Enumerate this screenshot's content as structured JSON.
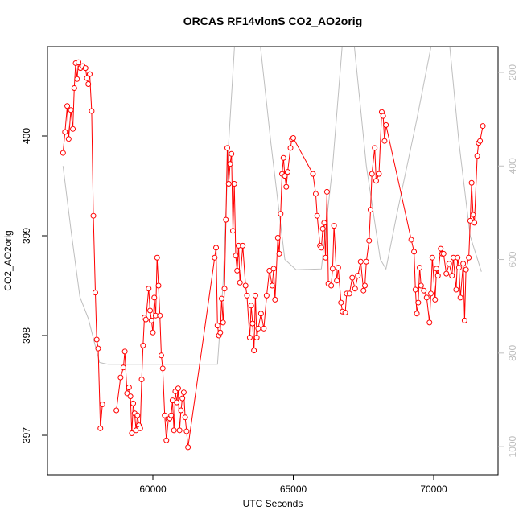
{
  "chart_data": {
    "type": "line",
    "title": "ORCAS RF14vlonS CO2_AO2orig",
    "x_label": "UTC Seconds",
    "y_label": "CO2_AO2orig",
    "xlim": [
      56246,
      72292
    ],
    "xticks": [
      60000,
      65000,
      70000
    ],
    "ylim": [
      396.605,
      400.895
    ],
    "yticks": [
      397,
      398,
      399,
      400
    ],
    "y2lim": [
      1060,
      145
    ],
    "y2ticks": [
      200,
      400,
      600,
      800,
      1000
    ],
    "series": [
      {
        "color": "#ff0000",
        "markers": true,
        "x": [
          56800,
          56870,
          56950,
          57000,
          57080,
          57150,
          57200,
          57250,
          57300,
          57350,
          57420,
          57500,
          57600,
          57650,
          57700,
          57750,
          57820,
          57880,
          57950,
          58000,
          58050,
          58130,
          58200,
          58450,
          58700,
          58850,
          58950,
          59000,
          59080,
          59150,
          59200,
          59250,
          59300,
          59350,
          59400,
          59450,
          59500,
          59550,
          59600,
          59650,
          59700,
          59750,
          59850,
          59900,
          59950,
          60000,
          60050,
          60100,
          60150,
          60200,
          60250,
          60300,
          60350,
          60420,
          60480,
          60550,
          60600,
          60650,
          60700,
          60750,
          60800,
          60850,
          60900,
          60950,
          61000,
          61050,
          61100,
          61150,
          61200,
          61250,
          62200,
          62250,
          62300,
          62350,
          62400,
          62450,
          62500,
          62550,
          62600,
          62650,
          62700,
          62750,
          62800,
          62850,
          62900,
          62950,
          63000,
          63050,
          63100,
          63200,
          63300,
          63350,
          63450,
          63500,
          63550,
          63600,
          63650,
          63700,
          63750,
          63850,
          63950,
          64050,
          64150,
          64250,
          64300,
          64350,
          64450,
          64500,
          64550,
          64600,
          64650,
          64700,
          64750,
          64800,
          64900,
          64950,
          65000,
          65700,
          65800,
          65850,
          65950,
          66000,
          66050,
          66100,
          66150,
          66200,
          66250,
          66350,
          66400,
          66450,
          66550,
          66600,
          66700,
          66750,
          66850,
          66900,
          67000,
          67100,
          67200,
          67300,
          67400,
          67500,
          67550,
          67600,
          67700,
          67750,
          67800,
          67900,
          67950,
          68050,
          68150,
          68200,
          68250,
          68300,
          69200,
          69300,
          69350,
          69400,
          69450,
          69500,
          69550,
          69650,
          69750,
          69850,
          69900,
          69950,
          70050,
          70100,
          70150,
          70250,
          70300,
          70350,
          70450,
          70550,
          70650,
          70700,
          70800,
          70850,
          70900,
          70950,
          71050,
          71100,
          71150,
          71250,
          71300,
          71350,
          71400,
          71450,
          71550,
          71600,
          71650,
          71750
        ],
        "values": [
          399.83,
          400.04,
          400.3,
          399.97,
          400.26,
          400.07,
          400.48,
          400.73,
          400.57,
          400.74,
          400.68,
          400.7,
          400.68,
          400.58,
          400.52,
          400.62,
          400.25,
          399.2,
          398.43,
          397.96,
          397.87,
          397.07,
          397.31,
          null,
          397.25,
          397.58,
          397.68,
          397.84,
          397.42,
          397.48,
          397.39,
          397.02,
          397.32,
          397.22,
          397.05,
          397.2,
          397.1,
          397.07,
          397.56,
          397.9,
          398.18,
          398.16,
          398.47,
          398.25,
          398.15,
          398.03,
          398.38,
          398.2,
          398.78,
          398.5,
          398.2,
          397.8,
          397.67,
          397.2,
          396.95,
          397.16,
          397.17,
          397.2,
          397.35,
          397.05,
          397.44,
          397.33,
          397.47,
          397.05,
          397.25,
          397.37,
          397.43,
          397.18,
          397.04,
          396.88,
          398.78,
          398.88,
          398.1,
          398.0,
          398.03,
          398.37,
          398.13,
          398.47,
          399.16,
          399.88,
          399.52,
          399.72,
          399.82,
          399.05,
          399.52,
          398.8,
          398.65,
          398.9,
          398.53,
          398.9,
          398.5,
          398.4,
          397.98,
          398.3,
          398.12,
          397.85,
          398.4,
          397.98,
          398.07,
          398.22,
          398.07,
          398.4,
          398.65,
          398.5,
          398.67,
          398.36,
          398.98,
          398.82,
          399.22,
          399.62,
          399.78,
          399.6,
          399.49,
          399.64,
          399.88,
          399.97,
          399.98,
          399.62,
          399.42,
          399.2,
          398.9,
          398.88,
          399.07,
          399.13,
          398.78,
          399.44,
          398.52,
          398.5,
          398.67,
          399.1,
          398.55,
          398.68,
          398.33,
          398.24,
          398.23,
          398.42,
          398.42,
          398.58,
          398.47,
          398.6,
          398.74,
          398.45,
          398.5,
          398.74,
          398.95,
          399.26,
          399.62,
          399.88,
          399.55,
          399.62,
          400.24,
          400.2,
          399.95,
          400.11,
          398.96,
          398.84,
          398.46,
          398.22,
          398.33,
          398.68,
          398.5,
          398.45,
          398.38,
          398.13,
          398.42,
          398.78,
          398.36,
          398.67,
          398.6,
          398.87,
          398.82,
          398.82,
          398.62,
          398.72,
          398.6,
          398.78,
          398.46,
          398.78,
          398.68,
          398.38,
          398.72,
          398.15,
          398.66,
          398.78,
          399.15,
          399.53,
          399.21,
          399.13,
          399.8,
          399.93,
          399.95,
          400.1
        ]
      },
      {
        "color": "#bebebe",
        "axis": "y2",
        "markers": false,
        "x": [
          56800,
          57100,
          57400,
          57700,
          58100,
          58400,
          62300,
          62500,
          62700,
          62950,
          63750,
          64200,
          64700,
          65100,
          66000,
          66400,
          66800,
          67100,
          67600,
          68100,
          68300,
          68700,
          69400,
          70050,
          70500,
          70900,
          71300,
          71700
        ],
        "values": [
          400,
          545,
          680,
          726,
          820,
          824,
          824,
          650,
          350,
          100,
          100,
          350,
          600,
          622,
          620,
          400,
          100,
          100,
          400,
          600,
          620,
          500,
          300,
          100,
          100,
          350,
          550,
          626
        ]
      }
    ]
  }
}
